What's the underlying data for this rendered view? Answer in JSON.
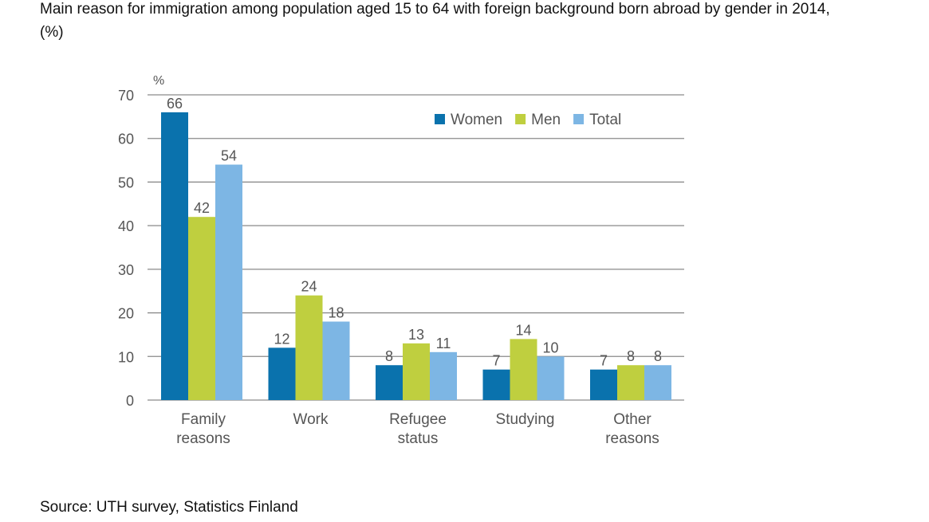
{
  "title": "Main reason for immigration among population aged 15 to 64 with foreign background born abroad by gender in 2014, (%)",
  "source": "Source: UTH survey, Statistics Finland",
  "chart_data": {
    "type": "bar",
    "ylabel": "%",
    "ylim": [
      0,
      70
    ],
    "yticks": [
      0,
      10,
      20,
      30,
      40,
      50,
      60,
      70
    ],
    "grid": true,
    "legend_position": "top-right",
    "categories": [
      [
        "Family",
        "reasons"
      ],
      [
        "Work"
      ],
      [
        "Refugee",
        "status"
      ],
      [
        "Studying"
      ],
      [
        "Other",
        "reasons"
      ]
    ],
    "series": [
      {
        "name": "Women",
        "color": "#0a72ad",
        "values": [
          66,
          12,
          8,
          7,
          7
        ]
      },
      {
        "name": "Men",
        "color": "#bfcf3f",
        "values": [
          42,
          24,
          13,
          14,
          8
        ]
      },
      {
        "name": "Total",
        "color": "#7db6e4",
        "values": [
          54,
          18,
          11,
          10,
          8
        ]
      }
    ]
  }
}
